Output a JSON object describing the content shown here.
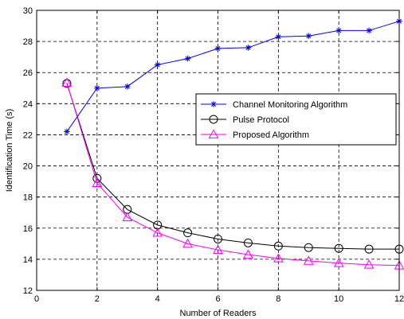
{
  "chart_data": {
    "type": "line",
    "title": "",
    "xlabel": "Number of Readers",
    "ylabel": "Identification Time (s)",
    "xlim": [
      0,
      12
    ],
    "ylim": [
      12,
      30
    ],
    "xticks": [
      0,
      2,
      4,
      6,
      8,
      10,
      12
    ],
    "yticks": [
      12,
      14,
      16,
      18,
      20,
      22,
      24,
      26,
      28,
      30
    ],
    "grid": true,
    "legend_position": "right",
    "x": [
      1,
      2,
      3,
      4,
      5,
      6,
      7,
      8,
      9,
      10,
      11,
      12
    ],
    "series": [
      {
        "name": "Channel Monitoring Algorithm",
        "color": "#0000ff",
        "marker": "star",
        "values": [
          22.2,
          25.0,
          25.1,
          26.5,
          26.9,
          27.55,
          27.6,
          28.3,
          28.35,
          28.7,
          28.7,
          29.3
        ]
      },
      {
        "name": "Pulse Protocol",
        "color": "#000000",
        "marker": "circle",
        "values": [
          25.3,
          19.2,
          17.2,
          16.2,
          15.7,
          15.3,
          15.05,
          14.85,
          14.75,
          14.7,
          14.65,
          14.65
        ]
      },
      {
        "name": "Proposed Algorithm",
        "color": "#ff00ff",
        "marker": "triangle",
        "values": [
          25.35,
          18.9,
          16.7,
          15.7,
          15.0,
          14.6,
          14.3,
          14.05,
          13.9,
          13.75,
          13.65,
          13.6
        ]
      }
    ]
  }
}
